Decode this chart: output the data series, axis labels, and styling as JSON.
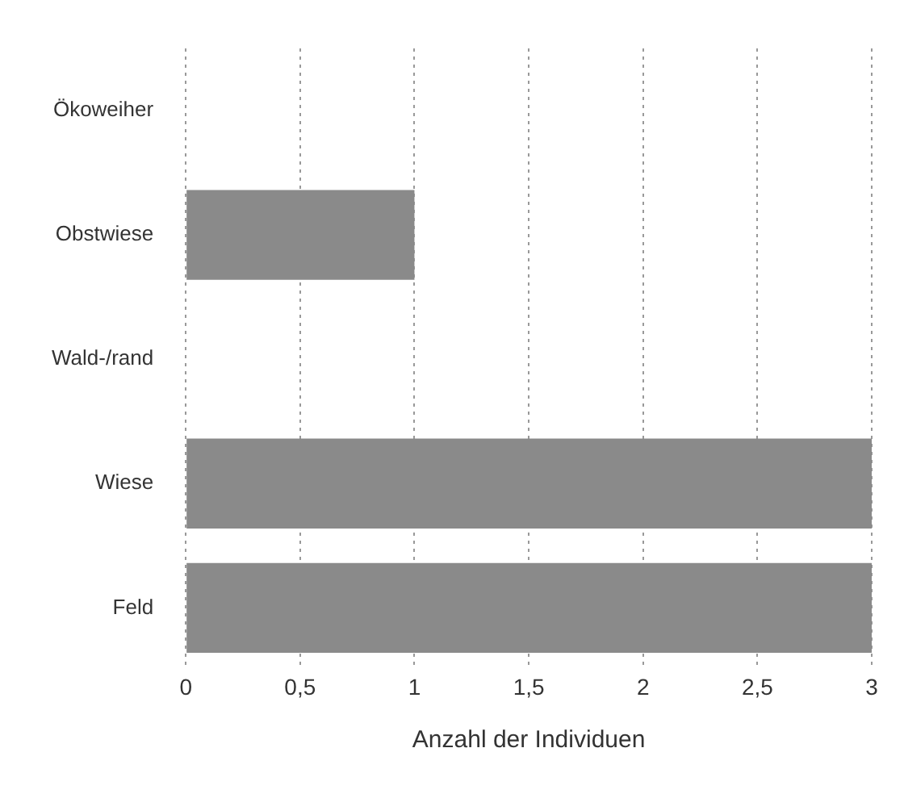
{
  "chart_data": {
    "type": "bar",
    "orientation": "horizontal",
    "xlabel": "Anzahl der Individuen",
    "categories": [
      "Ökoweiher",
      "Obstwiese",
      "Wald-/rand",
      "Wiese",
      "Feld"
    ],
    "values": [
      0,
      1,
      0,
      3,
      3
    ],
    "color": "#8a8a8a",
    "xlim": [
      0,
      3
    ],
    "xticks": [
      0,
      {
        "value": 0.5,
        "label": "0,5"
      },
      1,
      {
        "value": 1.5,
        "label": "1,5"
      },
      2,
      {
        "value": 2.5,
        "label": "2,5"
      },
      3
    ],
    "grid": "x",
    "legend": false
  }
}
